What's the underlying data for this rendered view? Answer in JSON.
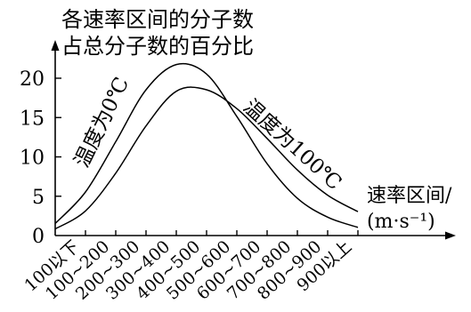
{
  "chart_data": {
    "type": "line",
    "ylabel_lines": [
      "各速率区间的分子数",
      "占总分子数的百分比"
    ],
    "xlabel_lines": [
      "速率区间/",
      "(m·s⁻¹)"
    ],
    "y_ticks": [
      0,
      5,
      10,
      15,
      20
    ],
    "ylim": [
      0,
      23
    ],
    "categories": [
      "100以下",
      "100~200",
      "200~300",
      "300~400",
      "400~500",
      "500~600",
      "600~700",
      "700~800",
      "800~900",
      "900以上"
    ],
    "grid": false,
    "legend": "none",
    "series": [
      {
        "name": "温度为0℃",
        "x": [
          0,
          1,
          2,
          3,
          4,
          5,
          6,
          7,
          8,
          9,
          10
        ],
        "values": [
          1.4,
          5.4,
          11.8,
          18.4,
          21.6,
          20.4,
          15.0,
          9.0,
          4.6,
          2.2,
          0.9
        ]
      },
      {
        "name": "温度为100℃",
        "x": [
          0,
          1,
          2,
          3,
          4,
          5,
          6,
          7,
          8,
          9,
          10
        ],
        "values": [
          0.7,
          3.0,
          7.8,
          13.8,
          18.2,
          18.4,
          16.0,
          12.2,
          8.2,
          5.0,
          2.9
        ]
      }
    ]
  }
}
